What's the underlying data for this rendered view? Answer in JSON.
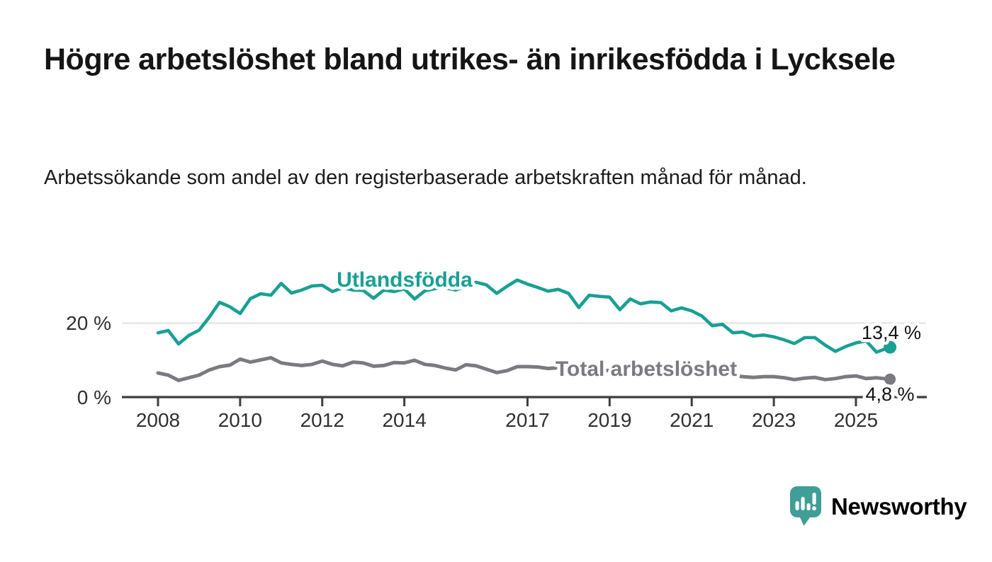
{
  "header": {
    "title": "Högre arbetslöshet bland utrikes- än inrikesfödda i Lycksele",
    "subtitle": "Arbetssökande som andel av den registerbaserade arbetskraften månad för månad."
  },
  "colors": {
    "background": "#ffffff",
    "title_text": "#151515",
    "axis_text": "#303030",
    "foreign_born_line": "#18a094",
    "total_line": "#7b7a81",
    "gridline": "#e1e1e1",
    "axis_line": "#3e3e3e",
    "brand_teal": "#3f9e95"
  },
  "footer": {
    "brand": "Newsworthy",
    "logo_icon": "speech-bubble-bar-chart-icon"
  },
  "chart_data": {
    "type": "line",
    "title": "Högre arbetslöshet bland utrikes- än inrikesfödda i Lycksele",
    "subtitle": "Arbetssökande som andel av den registerbaserade arbetskraften månad för månad.",
    "unit": "%",
    "grid": "horizontal-only",
    "xlim": [
      2007.8,
      2026.6
    ],
    "ylim": [
      0,
      34.5
    ],
    "x_ticks": [
      "2008",
      "2010",
      "2012",
      "2014",
      "2017",
      "2019",
      "2021",
      "2023",
      "2025"
    ],
    "x_tick_years": [
      2008,
      2010,
      2012,
      2014,
      2017,
      2019,
      2021,
      2023,
      2025
    ],
    "y_ticks": [
      {
        "value": 0,
        "label": "0 %"
      },
      {
        "value": 20,
        "label": "20 %"
      }
    ],
    "x": [
      2008.0,
      2008.25,
      2008.5,
      2008.75,
      2009.0,
      2009.25,
      2009.5,
      2009.75,
      2010.0,
      2010.25,
      2010.5,
      2010.75,
      2011.0,
      2011.25,
      2011.5,
      2011.75,
      2012.0,
      2012.25,
      2012.5,
      2012.75,
      2013.0,
      2013.25,
      2013.5,
      2013.75,
      2014.0,
      2014.25,
      2014.5,
      2014.75,
      2015.0,
      2015.25,
      2015.5,
      2015.75,
      2016.0,
      2016.25,
      2016.5,
      2016.75,
      2017.0,
      2017.25,
      2017.5,
      2017.75,
      2018.0,
      2018.25,
      2018.5,
      2018.75,
      2019.0,
      2019.25,
      2019.5,
      2019.75,
      2020.0,
      2020.25,
      2020.5,
      2020.75,
      2021.0,
      2021.25,
      2021.5,
      2021.75,
      2022.0,
      2022.25,
      2022.5,
      2022.75,
      2023.0,
      2023.25,
      2023.5,
      2023.75,
      2024.0,
      2024.25,
      2024.5,
      2024.75,
      2025.0,
      2025.25,
      2025.5,
      2025.83
    ],
    "series": [
      {
        "name": "Utlandsfödda",
        "color": "#18a094",
        "end_label": "13,4 %",
        "latest_value": 13.4,
        "values": [
          17.3,
          17.9,
          14.3,
          16.6,
          18.0,
          21.5,
          25.5,
          24.3,
          22.5,
          26.5,
          27.8,
          27.4,
          30.6,
          28.0,
          28.8,
          29.9,
          30.1,
          28.4,
          29.4,
          28.8,
          28.7,
          26.6,
          28.8,
          28.4,
          29.1,
          26.4,
          28.6,
          29.2,
          29.4,
          28.8,
          29.8,
          30.9,
          30.2,
          27.9,
          29.8,
          31.5,
          30.4,
          29.5,
          28.5,
          29.0,
          27.9,
          24.1,
          27.4,
          27.1,
          26.9,
          23.5,
          26.4,
          25.1,
          25.6,
          25.4,
          23.2,
          24.0,
          23.2,
          21.8,
          19.2,
          19.6,
          17.3,
          17.5,
          16.4,
          16.7,
          16.2,
          15.4,
          14.4,
          16.0,
          16.0,
          14.0,
          12.3,
          13.6,
          14.6,
          15.1,
          12.1,
          13.4
        ]
      },
      {
        "name": "Total arbetslöshet",
        "color": "#7b7a81",
        "end_label": "4,8 %",
        "latest_value": 4.8,
        "values": [
          6.5,
          5.9,
          4.5,
          5.2,
          5.9,
          7.3,
          8.2,
          8.6,
          10.2,
          9.4,
          10.0,
          10.6,
          9.2,
          8.8,
          8.5,
          8.8,
          9.7,
          8.8,
          8.4,
          9.4,
          9.2,
          8.3,
          8.5,
          9.3,
          9.2,
          9.9,
          8.8,
          8.5,
          7.8,
          7.3,
          8.7,
          8.4,
          7.5,
          6.6,
          7.1,
          8.2,
          8.2,
          8.1,
          7.7,
          7.9,
          7.5,
          7.1,
          7.3,
          7.1,
          7.2,
          6.8,
          7.1,
          6.9,
          7.4,
          7.8,
          7.6,
          7.2,
          7.0,
          6.6,
          6.3,
          6.0,
          5.8,
          5.5,
          5.3,
          5.5,
          5.5,
          5.2,
          4.7,
          5.1,
          5.3,
          4.7,
          5.0,
          5.5,
          5.7,
          5.0,
          5.2,
          4.8
        ]
      }
    ],
    "legend_position": "inline-labels-on-lines"
  }
}
